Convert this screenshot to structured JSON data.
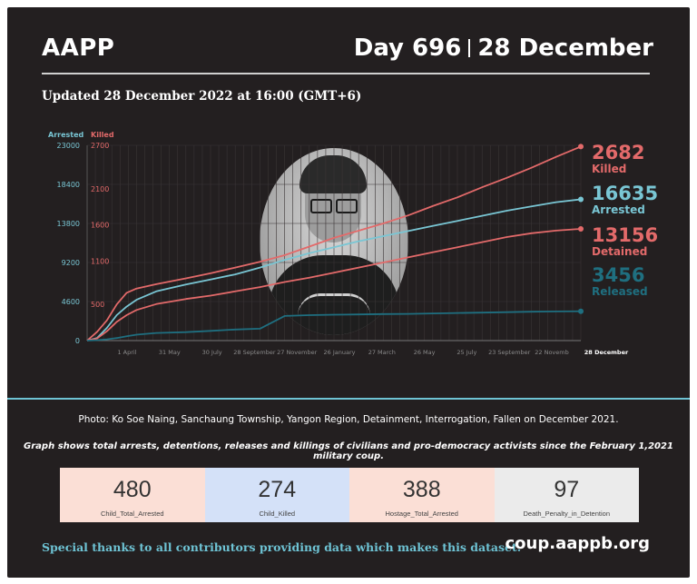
{
  "header": {
    "org": "AAPP",
    "day": "Day 696",
    "date": "28 December"
  },
  "updated": "Updated 28 December 2022 at 16:00 (GMT+6)",
  "colors": {
    "arrested": "#79c6d4",
    "killed": "#e36a6a",
    "detained": "#e36a6a",
    "released": "#1f6f80",
    "panel": "#231f20"
  },
  "chart_data": {
    "type": "line",
    "axis_titles": {
      "left": "Arrested",
      "right": "Killed"
    },
    "left_axis": {
      "ticks": [
        0,
        4600,
        9200,
        13800,
        18400,
        23000
      ],
      "ylim": [
        0,
        23000
      ]
    },
    "right_axis": {
      "ticks": [
        500,
        1100,
        1600,
        2100,
        2700
      ],
      "ylim": [
        0,
        2700
      ]
    },
    "x_ticks": [
      "1 April",
      "31 May",
      "30 July",
      "28 September",
      "27 November",
      "26 January",
      "27 March",
      "26 May",
      "25 July",
      "23 September",
      "22 Novemb",
      "28 December"
    ],
    "x": [
      0,
      0.02,
      0.04,
      0.06,
      0.08,
      0.1,
      0.14,
      0.2,
      0.25,
      0.3,
      0.35,
      0.4,
      0.45,
      0.5,
      0.55,
      0.6,
      0.65,
      0.7,
      0.75,
      0.8,
      0.85,
      0.9,
      0.95,
      1.0
    ],
    "series": [
      {
        "name": "Killed",
        "axis": "right",
        "values": [
          0,
          120,
          280,
          500,
          660,
          720,
          780,
          860,
          930,
          1010,
          1090,
          1180,
          1300,
          1420,
          1520,
          1620,
          1730,
          1860,
          1980,
          2120,
          2250,
          2390,
          2540,
          2682
        ]
      },
      {
        "name": "Arrested",
        "axis": "left",
        "values": [
          0,
          300,
          1500,
          3000,
          4000,
          4800,
          5800,
          6600,
          7200,
          7800,
          8600,
          9500,
          10300,
          11000,
          11700,
          12300,
          12900,
          13500,
          14100,
          14700,
          15300,
          15800,
          16300,
          16635
        ]
      },
      {
        "name": "Detained",
        "axis": "left",
        "values": [
          0,
          250,
          1100,
          2200,
          3000,
          3600,
          4300,
          4900,
          5300,
          5800,
          6300,
          6900,
          7400,
          8000,
          8600,
          9200,
          9800,
          10400,
          11000,
          11600,
          12200,
          12650,
          12950,
          13156
        ]
      },
      {
        "name": "Released",
        "axis": "left",
        "values": [
          0,
          50,
          150,
          300,
          500,
          700,
          900,
          1000,
          1150,
          1300,
          1400,
          2900,
          3000,
          3050,
          3080,
          3120,
          3150,
          3200,
          3250,
          3300,
          3350,
          3400,
          3430,
          3456
        ]
      }
    ],
    "end_labels": [
      {
        "value": "2682",
        "label": "Killed"
      },
      {
        "value": "16635",
        "label": "Arrested"
      },
      {
        "value": "13156",
        "label": "Detained"
      },
      {
        "value": "3456",
        "label": "Released"
      }
    ]
  },
  "caption": {
    "photo": "Photo: Ko Soe Naing,  Sanchaung Township, Yangon Region, Detainment, Interrogation, Fallen on December 2021.",
    "graph": "Graph shows total arrests, detentions, releases and killings of civilians and pro-democracy activists since the February 1,2021 military coup."
  },
  "stats": [
    {
      "value": "480",
      "label": "Child_Total_Arrested",
      "bg": "#fbdfd6"
    },
    {
      "value": "274",
      "label": "Child_Killed",
      "bg": "#d4e1f8"
    },
    {
      "value": "388",
      "label": "Hostage_Total_Arrested",
      "bg": "#fbdfd6"
    },
    {
      "value": "97",
      "label": "Death_Penalty_in_Detention",
      "bg": "#ebebeb"
    }
  ],
  "footer": {
    "thanks": "Special thanks to all contributors providing data which makes this dataset.",
    "site": "coup.aappb.org"
  }
}
